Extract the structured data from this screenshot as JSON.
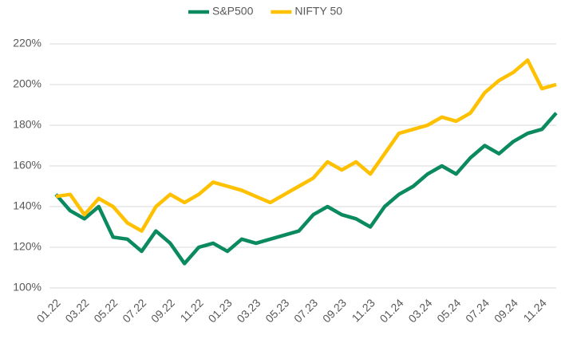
{
  "chart_data": {
    "type": "line",
    "categories": [
      "01.22",
      null,
      "03.22",
      null,
      "05.22",
      null,
      "07.22",
      null,
      "09.22",
      null,
      "11.22",
      null,
      "01.23",
      null,
      "03.23",
      null,
      "05.23",
      null,
      "07.23",
      null,
      "09.23",
      null,
      "11.23",
      null,
      "01.24",
      null,
      "03.24",
      null,
      "05.24",
      null,
      "07.24",
      null,
      "09.24",
      null,
      "11.24",
      null
    ],
    "series": [
      {
        "name": "S&P500",
        "color": "#0a8a5e",
        "values": [
          146,
          138,
          134,
          140,
          125,
          124,
          118,
          128,
          122,
          112,
          120,
          122,
          118,
          124,
          122,
          124,
          126,
          128,
          136,
          140,
          136,
          134,
          130,
          140,
          146,
          150,
          156,
          160,
          156,
          164,
          170,
          166,
          172,
          176,
          178,
          186
        ]
      },
      {
        "name": "NIFTY 50",
        "color": "#ffc000",
        "values": [
          145,
          146,
          136,
          144,
          140,
          132,
          128,
          140,
          146,
          142,
          146,
          152,
          150,
          148,
          145,
          142,
          146,
          150,
          154,
          162,
          158,
          162,
          156,
          166,
          176,
          178,
          180,
          184,
          182,
          186,
          196,
          202,
          206,
          212,
          198,
          200
        ]
      }
    ],
    "ylim": [
      100,
      220
    ],
    "yticks": [
      {
        "value": 100,
        "label": "100%"
      },
      {
        "value": 120,
        "label": "120%"
      },
      {
        "value": 140,
        "label": "140%"
      },
      {
        "value": 160,
        "label": "160%"
      },
      {
        "value": 180,
        "label": "180%"
      },
      {
        "value": 200,
        "label": "200%"
      },
      {
        "value": 220,
        "label": "220%"
      }
    ],
    "grid": true,
    "legend": "top"
  }
}
